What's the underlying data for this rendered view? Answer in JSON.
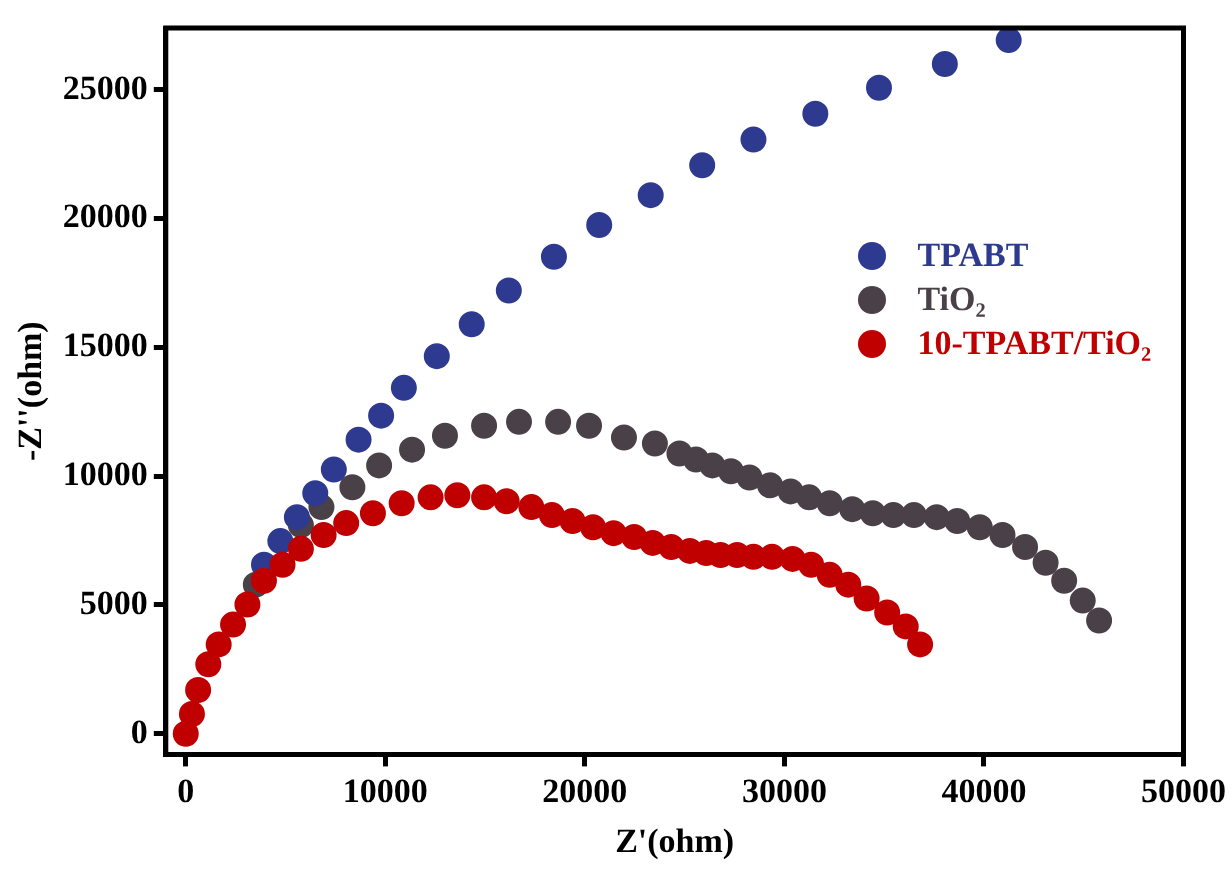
{
  "chart_data": {
    "type": "scatter",
    "xlabel": "Z'(ohm)",
    "ylabel": "-Z''(ohm)",
    "xlim": [
      -1000,
      50000
    ],
    "ylim": [
      -800,
      27400
    ],
    "xticks": [
      0,
      10000,
      20000,
      30000,
      40000,
      50000
    ],
    "yticks": [
      0,
      5000,
      10000,
      15000,
      20000,
      25000
    ],
    "grid": false,
    "legend": "right",
    "marker": "circle",
    "series": [
      {
        "name": "TPABT",
        "color": "#2e3a8f",
        "x": [
          41240,
          38040,
          34740,
          31550,
          28450,
          25880,
          23300,
          20720,
          18450,
          16190,
          14330,
          12580,
          10930,
          9790,
          8660,
          7420,
          6490,
          5570,
          4740,
          3920
        ],
        "values": [
          26930,
          26000,
          25080,
          24070,
          23070,
          22070,
          20910,
          19750,
          18520,
          17210,
          15900,
          14660,
          13430,
          12350,
          11420,
          10260,
          9340,
          8410,
          7480,
          6560
        ]
      },
      {
        "name": "TiO₂",
        "color": "#4a4048",
        "x": [
          3510,
          5770,
          6800,
          8350,
          9690,
          11340,
          12990,
          14950,
          16700,
          18660,
          20210,
          21960,
          23510,
          24740,
          25570,
          26390,
          27320,
          28250,
          29280,
          30310,
          31240,
          32270,
          33400,
          34430,
          35460,
          36490,
          37630,
          38660,
          39790,
          40930,
          42060,
          43090,
          44020,
          44950,
          45770
        ],
        "values": [
          5790,
          8100,
          8800,
          9570,
          10420,
          11030,
          11570,
          11960,
          12110,
          12110,
          11960,
          11500,
          11270,
          10880,
          10650,
          10420,
          10190,
          9950,
          9650,
          9410,
          9180,
          8950,
          8720,
          8560,
          8490,
          8490,
          8410,
          8260,
          8020,
          7720,
          7250,
          6640,
          5940,
          5170,
          4400
        ]
      },
      {
        "name": "10-TPABT/TiO₂",
        "color": "#c00000",
        "x": [
          0,
          310,
          620,
          1130,
          1650,
          2370,
          3090,
          3920,
          4850,
          5770,
          6910,
          8040,
          9380,
          10820,
          12270,
          13610,
          14950,
          16080,
          17320,
          18350,
          19380,
          20410,
          21440,
          22470,
          23400,
          24330,
          25260,
          26080,
          26800,
          27630,
          28450,
          29380,
          30410,
          31340,
          32270,
          33200,
          34120,
          35150,
          36080,
          36800
        ],
        "values": [
          0,
          770,
          1700,
          2700,
          3470,
          4240,
          5020,
          5940,
          6560,
          7180,
          7720,
          8180,
          8560,
          8950,
          9180,
          9260,
          9180,
          9030,
          8800,
          8490,
          8260,
          8020,
          7790,
          7640,
          7410,
          7250,
          7100,
          7020,
          6940,
          6940,
          6870,
          6870,
          6790,
          6560,
          6170,
          5790,
          5250,
          4710,
          4170,
          3470
        ]
      }
    ]
  }
}
